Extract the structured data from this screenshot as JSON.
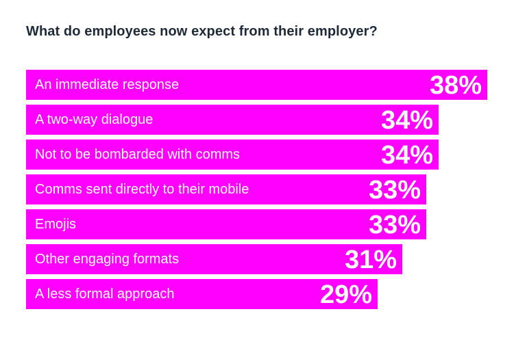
{
  "colors": {
    "bar": "#ff00ff",
    "bar_text": "#ffffff",
    "title": "#1e2a38",
    "background": "#ffffff"
  },
  "chart_data": {
    "type": "bar",
    "orientation": "horizontal",
    "title": "What do employees now expect from their employer?",
    "xlabel": "",
    "ylabel": "",
    "unit": "%",
    "grid": false,
    "legend": "none",
    "categories": [
      "An immediate response",
      "A two-way dialogue",
      "Not to be bombarded with comms",
      "Comms sent directly to their mobile",
      "Emojis",
      "Other engaging formats",
      "A less formal approach"
    ],
    "values": [
      38,
      34,
      34,
      33,
      33,
      31,
      29
    ],
    "value_labels": [
      "38%",
      "34%",
      "34%",
      "33%",
      "33%",
      "31%",
      "29%"
    ]
  }
}
